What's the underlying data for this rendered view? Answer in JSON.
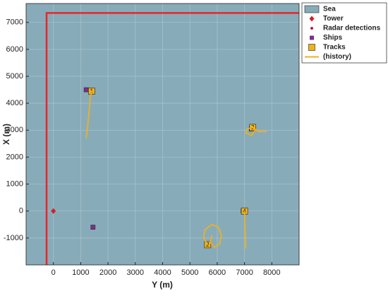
{
  "chart_data": {
    "type": "scatter",
    "xlabel": "Y (m)",
    "ylabel": "X (m)",
    "xlim": [
      -1000,
      9000
    ],
    "ylim": [
      -2000,
      7700
    ],
    "xticks": [
      0,
      1000,
      2000,
      3000,
      4000,
      5000,
      6000,
      7000,
      8000
    ],
    "yticks": [
      -1000,
      0,
      1000,
      2000,
      3000,
      4000,
      5000,
      6000,
      7000
    ],
    "grid": true,
    "legend": "northeast-outside",
    "boundary": {
      "color": "#e8262a",
      "x": [
        -250,
        -250,
        9000
      ],
      "y": [
        -2000,
        7350,
        7350
      ]
    },
    "series": [
      {
        "name": "Sea",
        "color": "#88abb9",
        "marker": "patch"
      },
      {
        "name": "Tower",
        "color": "#d0202a",
        "marker": "diamond",
        "x": [
          0
        ],
        "y": [
          0
        ]
      },
      {
        "name": "Radar detections",
        "color": "#b01e3c",
        "marker": "dot",
        "x": [
          1250,
          7300,
          7000,
          1450
        ],
        "y": [
          4500,
          3100,
          0,
          -600
        ]
      },
      {
        "name": "Ships",
        "color": "#7e2f8e",
        "marker": "square",
        "x": [
          1200,
          7250,
          6950,
          1450,
          5650
        ],
        "y": [
          4500,
          3050,
          0,
          -600,
          -1250
        ]
      },
      {
        "name": "Tracks",
        "color": "#f0b21a",
        "marker": "labeled-square",
        "x": [
          1400,
          5650,
          7300,
          7000
        ],
        "y": [
          4450,
          -1250,
          3100,
          0
        ],
        "labels": [
          "1",
          "2",
          "3",
          "4"
        ]
      },
      {
        "name": "(history)",
        "color": "#edb120",
        "marker": "line",
        "x": [
          1400,
          1350,
          1300,
          1250,
          1200,
          null,
          5650,
          5500,
          5550,
          5800,
          6050,
          6150,
          6100,
          5900,
          5750,
          5800,
          null,
          7300,
          7100,
          7050,
          7250,
          7400,
          7250,
          7500,
          7800,
          null,
          7000,
          7010,
          7030,
          7050,
          7020
        ],
        "y": [
          4450,
          4200,
          3600,
          3100,
          2700,
          null,
          -1250,
          -1000,
          -700,
          -500,
          -600,
          -900,
          -1200,
          -1350,
          -1150,
          -900,
          null,
          3100,
          3050,
          2900,
          2800,
          3000,
          3150,
          2950,
          2950,
          null,
          0,
          -400,
          -900,
          -1300,
          -1400
        ]
      }
    ]
  }
}
